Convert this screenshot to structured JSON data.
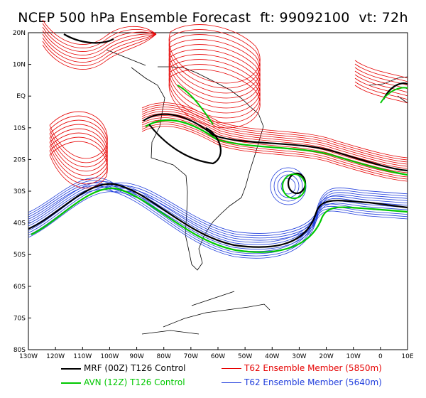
{
  "title": "NCEP 500 hPa Ensemble Forecast  ft: 99092100  vt: 72h",
  "axes": {
    "lat_labels": [
      "20N",
      "10N",
      "EQ",
      "10S",
      "20S",
      "30S",
      "40S",
      "50S",
      "60S",
      "70S",
      "80S"
    ],
    "lon_labels": [
      "130W",
      "120W",
      "110W",
      "100W",
      "90W",
      "80W",
      "70W",
      "60W",
      "50W",
      "40W",
      "30W",
      "20W",
      "10W",
      "0",
      "10E"
    ]
  },
  "legend": [
    {
      "label": "MRF (00Z) T126 Control",
      "color": "#000000",
      "width": 2.5
    },
    {
      "label": "AVN (12Z) T126 Control",
      "color": "#00c800",
      "width": 2.5
    },
    {
      "label": "T62 Ensemble Member (5850m)",
      "color": "#e60000",
      "width": 1
    },
    {
      "label": "T62 Ensemble Member (5640m)",
      "color": "#1e3cdc",
      "width": 1
    }
  ],
  "colors": {
    "mrf": "#000000",
    "avn": "#00c800",
    "member_5850": "#e60000",
    "member_5640": "#1e3cdc",
    "coast": "#000000"
  }
}
